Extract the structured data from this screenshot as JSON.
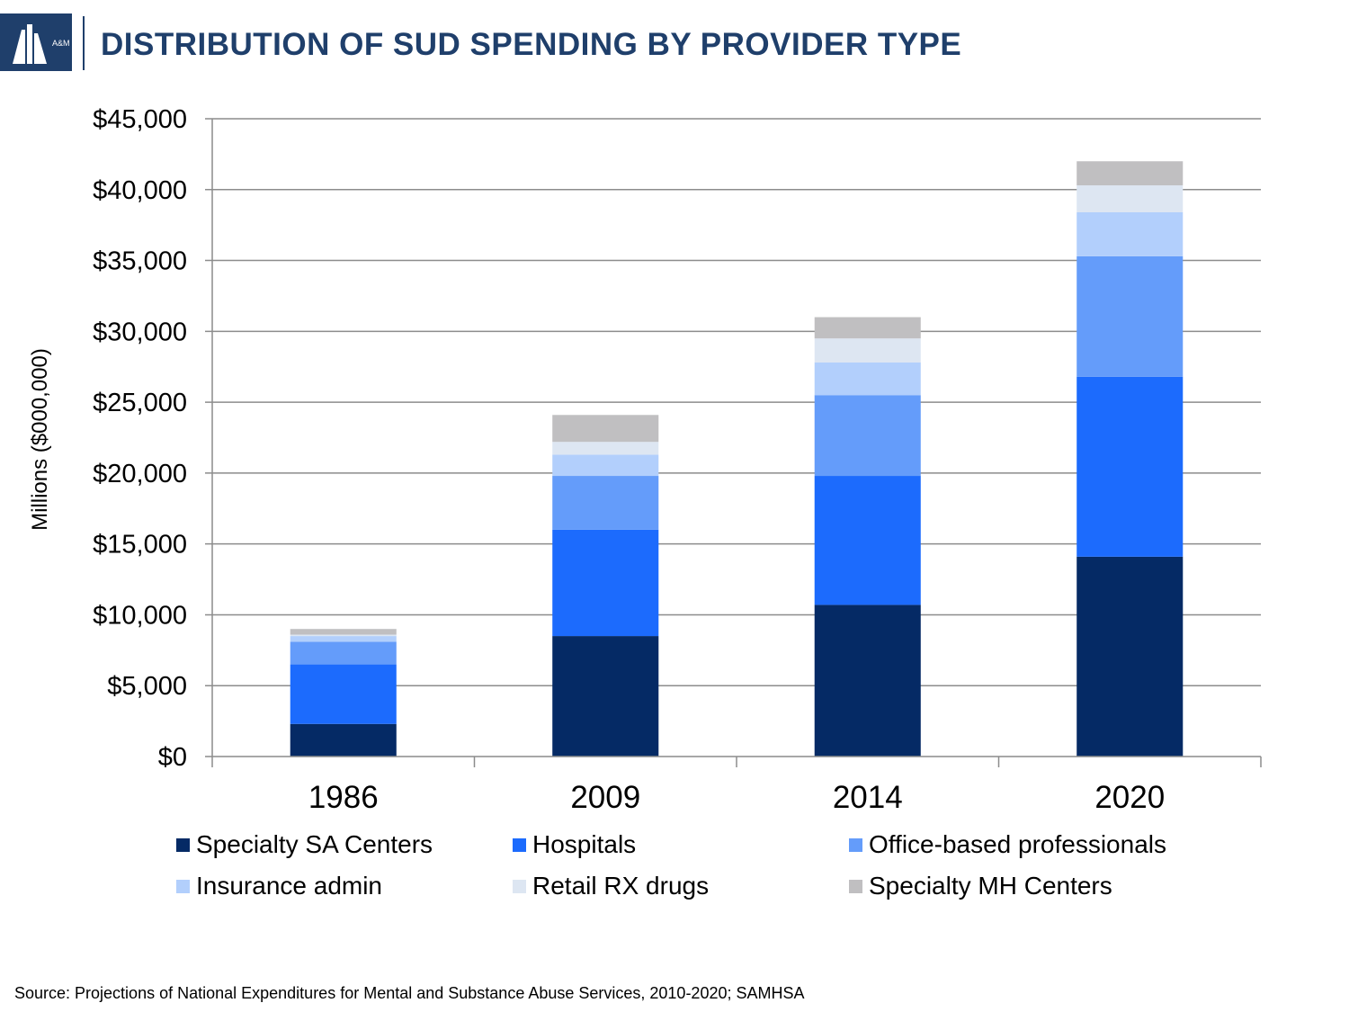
{
  "header": {
    "title": "DISTRIBUTION OF SUD SPENDING BY PROVIDER TYPE",
    "logo_text": "A&M"
  },
  "chart_data": {
    "type": "bar",
    "stacked": true,
    "categories": [
      "1986",
      "2009",
      "2014",
      "2020"
    ],
    "series": [
      {
        "name": "Specialty SA Centers",
        "color": "#052a65",
        "values": [
          2300,
          8500,
          10700,
          14100
        ]
      },
      {
        "name": "Hospitals",
        "color": "#1c6bfd",
        "values": [
          4200,
          7500,
          9100,
          12700
        ]
      },
      {
        "name": "Office-based professionals",
        "color": "#649cfa",
        "values": [
          1600,
          3800,
          5700,
          8500
        ]
      },
      {
        "name": "Insurance admin",
        "color": "#b2cffc",
        "values": [
          400,
          1500,
          2300,
          3100
        ]
      },
      {
        "name": "Retail RX drugs",
        "color": "#dde6f2",
        "values": [
          100,
          900,
          1700,
          1900
        ]
      },
      {
        "name": "Specialty MH Centers",
        "color": "#c0bfc1",
        "values": [
          400,
          1900,
          1500,
          1700
        ]
      }
    ],
    "ylabel": "Millions ($000,000)",
    "xlabel": "",
    "ylim": [
      0,
      45000
    ],
    "yticks": [
      "$0",
      "$5,000",
      "$10,000",
      "$15,000",
      "$20,000",
      "$25,000",
      "$30,000",
      "$35,000",
      "$40,000",
      "$45,000"
    ],
    "grid": true,
    "legend_position": "bottom"
  },
  "source": "Source: Projections of National Expenditures for Mental and Substance Abuse Services, 2010-2020; SAMHSA"
}
